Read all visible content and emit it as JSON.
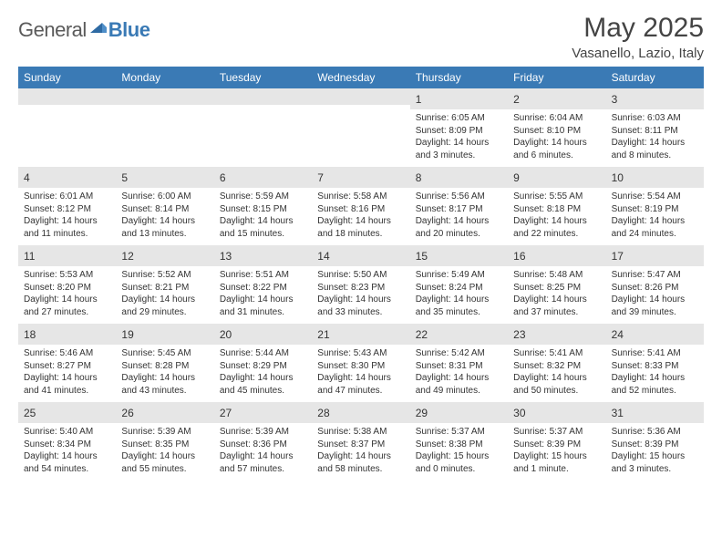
{
  "logo": {
    "general": "General",
    "blue": "Blue"
  },
  "title": "May 2025",
  "location": "Vasanello, Lazio, Italy",
  "colors": {
    "header_bg": "#3a7ab5",
    "header_text": "#ffffff",
    "daynum_bg": "#e6e6e6",
    "text": "#333333"
  },
  "weekdays": [
    "Sunday",
    "Monday",
    "Tuesday",
    "Wednesday",
    "Thursday",
    "Friday",
    "Saturday"
  ],
  "weeks": [
    [
      {
        "n": "",
        "sr": "",
        "ss": "",
        "dl": ""
      },
      {
        "n": "",
        "sr": "",
        "ss": "",
        "dl": ""
      },
      {
        "n": "",
        "sr": "",
        "ss": "",
        "dl": ""
      },
      {
        "n": "",
        "sr": "",
        "ss": "",
        "dl": ""
      },
      {
        "n": "1",
        "sr": "Sunrise: 6:05 AM",
        "ss": "Sunset: 8:09 PM",
        "dl": "Daylight: 14 hours and 3 minutes."
      },
      {
        "n": "2",
        "sr": "Sunrise: 6:04 AM",
        "ss": "Sunset: 8:10 PM",
        "dl": "Daylight: 14 hours and 6 minutes."
      },
      {
        "n": "3",
        "sr": "Sunrise: 6:03 AM",
        "ss": "Sunset: 8:11 PM",
        "dl": "Daylight: 14 hours and 8 minutes."
      }
    ],
    [
      {
        "n": "4",
        "sr": "Sunrise: 6:01 AM",
        "ss": "Sunset: 8:12 PM",
        "dl": "Daylight: 14 hours and 11 minutes."
      },
      {
        "n": "5",
        "sr": "Sunrise: 6:00 AM",
        "ss": "Sunset: 8:14 PM",
        "dl": "Daylight: 14 hours and 13 minutes."
      },
      {
        "n": "6",
        "sr": "Sunrise: 5:59 AM",
        "ss": "Sunset: 8:15 PM",
        "dl": "Daylight: 14 hours and 15 minutes."
      },
      {
        "n": "7",
        "sr": "Sunrise: 5:58 AM",
        "ss": "Sunset: 8:16 PM",
        "dl": "Daylight: 14 hours and 18 minutes."
      },
      {
        "n": "8",
        "sr": "Sunrise: 5:56 AM",
        "ss": "Sunset: 8:17 PM",
        "dl": "Daylight: 14 hours and 20 minutes."
      },
      {
        "n": "9",
        "sr": "Sunrise: 5:55 AM",
        "ss": "Sunset: 8:18 PM",
        "dl": "Daylight: 14 hours and 22 minutes."
      },
      {
        "n": "10",
        "sr": "Sunrise: 5:54 AM",
        "ss": "Sunset: 8:19 PM",
        "dl": "Daylight: 14 hours and 24 minutes."
      }
    ],
    [
      {
        "n": "11",
        "sr": "Sunrise: 5:53 AM",
        "ss": "Sunset: 8:20 PM",
        "dl": "Daylight: 14 hours and 27 minutes."
      },
      {
        "n": "12",
        "sr": "Sunrise: 5:52 AM",
        "ss": "Sunset: 8:21 PM",
        "dl": "Daylight: 14 hours and 29 minutes."
      },
      {
        "n": "13",
        "sr": "Sunrise: 5:51 AM",
        "ss": "Sunset: 8:22 PM",
        "dl": "Daylight: 14 hours and 31 minutes."
      },
      {
        "n": "14",
        "sr": "Sunrise: 5:50 AM",
        "ss": "Sunset: 8:23 PM",
        "dl": "Daylight: 14 hours and 33 minutes."
      },
      {
        "n": "15",
        "sr": "Sunrise: 5:49 AM",
        "ss": "Sunset: 8:24 PM",
        "dl": "Daylight: 14 hours and 35 minutes."
      },
      {
        "n": "16",
        "sr": "Sunrise: 5:48 AM",
        "ss": "Sunset: 8:25 PM",
        "dl": "Daylight: 14 hours and 37 minutes."
      },
      {
        "n": "17",
        "sr": "Sunrise: 5:47 AM",
        "ss": "Sunset: 8:26 PM",
        "dl": "Daylight: 14 hours and 39 minutes."
      }
    ],
    [
      {
        "n": "18",
        "sr": "Sunrise: 5:46 AM",
        "ss": "Sunset: 8:27 PM",
        "dl": "Daylight: 14 hours and 41 minutes."
      },
      {
        "n": "19",
        "sr": "Sunrise: 5:45 AM",
        "ss": "Sunset: 8:28 PM",
        "dl": "Daylight: 14 hours and 43 minutes."
      },
      {
        "n": "20",
        "sr": "Sunrise: 5:44 AM",
        "ss": "Sunset: 8:29 PM",
        "dl": "Daylight: 14 hours and 45 minutes."
      },
      {
        "n": "21",
        "sr": "Sunrise: 5:43 AM",
        "ss": "Sunset: 8:30 PM",
        "dl": "Daylight: 14 hours and 47 minutes."
      },
      {
        "n": "22",
        "sr": "Sunrise: 5:42 AM",
        "ss": "Sunset: 8:31 PM",
        "dl": "Daylight: 14 hours and 49 minutes."
      },
      {
        "n": "23",
        "sr": "Sunrise: 5:41 AM",
        "ss": "Sunset: 8:32 PM",
        "dl": "Daylight: 14 hours and 50 minutes."
      },
      {
        "n": "24",
        "sr": "Sunrise: 5:41 AM",
        "ss": "Sunset: 8:33 PM",
        "dl": "Daylight: 14 hours and 52 minutes."
      }
    ],
    [
      {
        "n": "25",
        "sr": "Sunrise: 5:40 AM",
        "ss": "Sunset: 8:34 PM",
        "dl": "Daylight: 14 hours and 54 minutes."
      },
      {
        "n": "26",
        "sr": "Sunrise: 5:39 AM",
        "ss": "Sunset: 8:35 PM",
        "dl": "Daylight: 14 hours and 55 minutes."
      },
      {
        "n": "27",
        "sr": "Sunrise: 5:39 AM",
        "ss": "Sunset: 8:36 PM",
        "dl": "Daylight: 14 hours and 57 minutes."
      },
      {
        "n": "28",
        "sr": "Sunrise: 5:38 AM",
        "ss": "Sunset: 8:37 PM",
        "dl": "Daylight: 14 hours and 58 minutes."
      },
      {
        "n": "29",
        "sr": "Sunrise: 5:37 AM",
        "ss": "Sunset: 8:38 PM",
        "dl": "Daylight: 15 hours and 0 minutes."
      },
      {
        "n": "30",
        "sr": "Sunrise: 5:37 AM",
        "ss": "Sunset: 8:39 PM",
        "dl": "Daylight: 15 hours and 1 minute."
      },
      {
        "n": "31",
        "sr": "Sunrise: 5:36 AM",
        "ss": "Sunset: 8:39 PM",
        "dl": "Daylight: 15 hours and 3 minutes."
      }
    ]
  ]
}
